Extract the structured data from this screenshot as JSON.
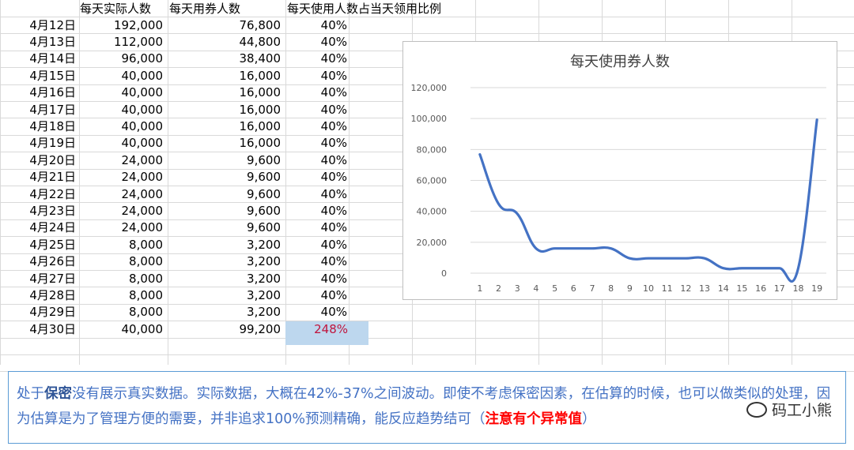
{
  "table": {
    "headers": [
      "每天实际人数",
      "每天用券人数",
      "每天使用人数占当天领用比例"
    ],
    "rows": [
      {
        "date": "4月12日",
        "actual": "192,000",
        "used": "76,800",
        "ratio": "40%"
      },
      {
        "date": "4月13日",
        "actual": "112,000",
        "used": "44,800",
        "ratio": "40%"
      },
      {
        "date": "4月14日",
        "actual": "96,000",
        "used": "38,400",
        "ratio": "40%"
      },
      {
        "date": "4月15日",
        "actual": "40,000",
        "used": "16,000",
        "ratio": "40%"
      },
      {
        "date": "4月16日",
        "actual": "40,000",
        "used": "16,000",
        "ratio": "40%"
      },
      {
        "date": "4月17日",
        "actual": "40,000",
        "used": "16,000",
        "ratio": "40%"
      },
      {
        "date": "4月18日",
        "actual": "40,000",
        "used": "16,000",
        "ratio": "40%"
      },
      {
        "date": "4月19日",
        "actual": "40,000",
        "used": "16,000",
        "ratio": "40%"
      },
      {
        "date": "4月20日",
        "actual": "24,000",
        "used": "9,600",
        "ratio": "40%"
      },
      {
        "date": "4月21日",
        "actual": "24,000",
        "used": "9,600",
        "ratio": "40%"
      },
      {
        "date": "4月22日",
        "actual": "24,000",
        "used": "9,600",
        "ratio": "40%"
      },
      {
        "date": "4月23日",
        "actual": "24,000",
        "used": "9,600",
        "ratio": "40%"
      },
      {
        "date": "4月24日",
        "actual": "24,000",
        "used": "9,600",
        "ratio": "40%"
      },
      {
        "date": "4月25日",
        "actual": "8,000",
        "used": "3,200",
        "ratio": "40%"
      },
      {
        "date": "4月26日",
        "actual": "8,000",
        "used": "3,200",
        "ratio": "40%"
      },
      {
        "date": "4月27日",
        "actual": "8,000",
        "used": "3,200",
        "ratio": "40%"
      },
      {
        "date": "4月28日",
        "actual": "8,000",
        "used": "3,200",
        "ratio": "40%"
      },
      {
        "date": "4月29日",
        "actual": "8,000",
        "used": "3,200",
        "ratio": "40%"
      },
      {
        "date": "4月30日",
        "actual": "40,000",
        "used": "99,200",
        "ratio": "248%"
      }
    ],
    "highlight_color": "#bdd7ee",
    "abnormal_color": "#c0143c"
  },
  "chart_data": {
    "type": "line",
    "title": "每天使用券人数",
    "x": [
      1,
      2,
      3,
      4,
      5,
      6,
      7,
      8,
      9,
      10,
      11,
      12,
      13,
      14,
      15,
      16,
      17,
      18,
      19
    ],
    "series": [
      {
        "values": [
          76800,
          44800,
          38400,
          16000,
          16000,
          16000,
          16000,
          16000,
          9600,
          9600,
          9600,
          9600,
          9600,
          3200,
          3200,
          3200,
          3200,
          3200,
          99200
        ]
      }
    ],
    "yticks": [
      "0",
      "20,000",
      "40,000",
      "60,000",
      "80,000",
      "100,000",
      "120,000"
    ],
    "ylim": [
      0,
      120000
    ],
    "grid": true,
    "line_color": "#4472c4",
    "smooth": true
  },
  "note": {
    "part1": "处于",
    "bold": "保密",
    "part2": "没有展示真实数据。实际数据，大概在42%-37%之间波动。即使不考虑保密因素，在估算的时候，也可以做类似的处理，因为估算是为了管理方便的需要，并非追求100%预测精确，能反应趋势结可（",
    "warn": "注意有个异常值",
    "part3": "）",
    "text_color": "#4472c4",
    "warn_color": "#ff0000"
  },
  "watermark": {
    "text": "码工小熊",
    "icon": "wechat-icon"
  }
}
